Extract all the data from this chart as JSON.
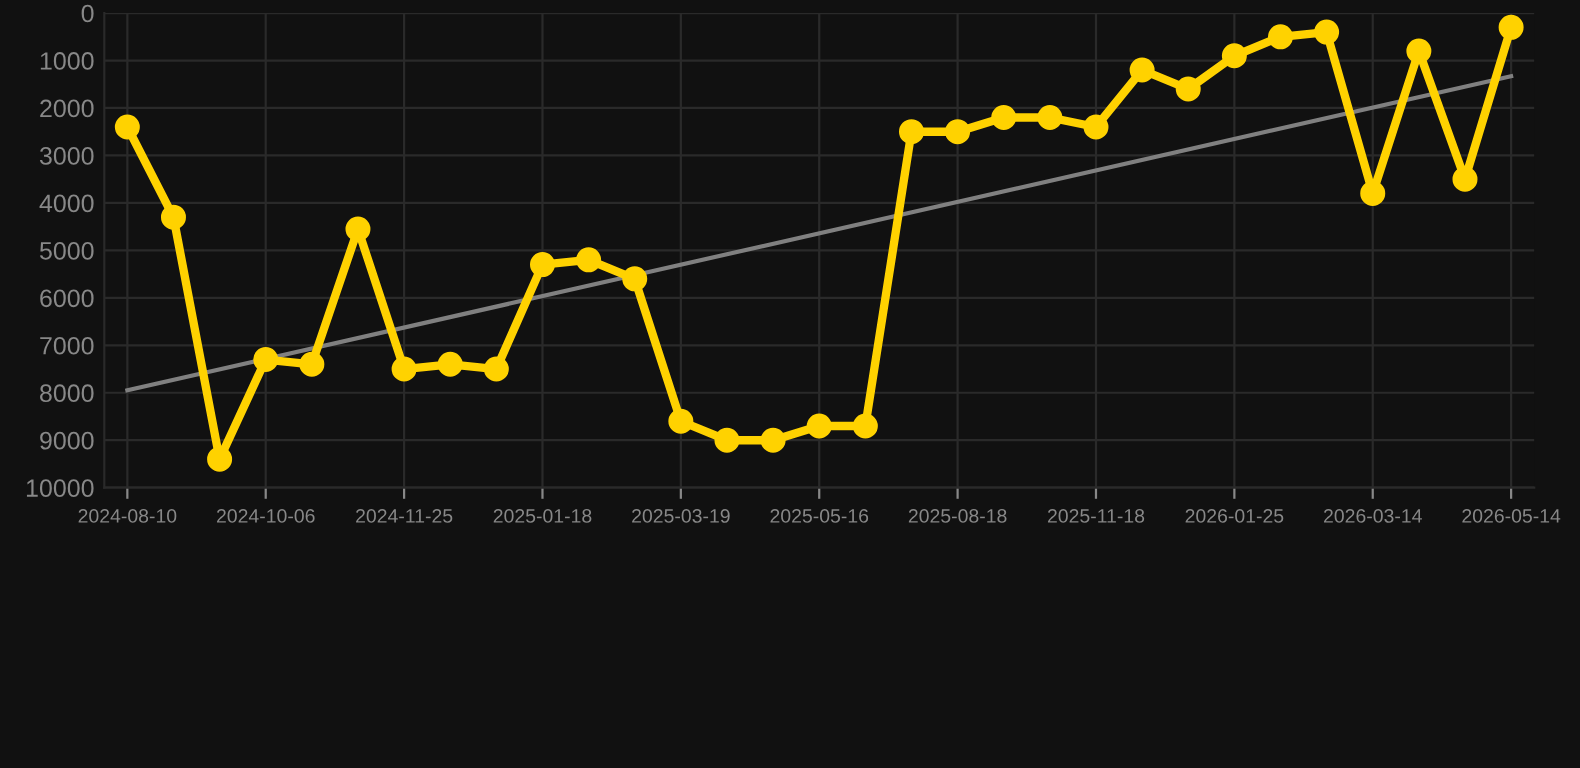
{
  "chart_data": {
    "type": "line",
    "categories": [
      "2024-08-10",
      null,
      null,
      "2024-10-06",
      null,
      null,
      "2024-11-25",
      null,
      null,
      "2025-01-18",
      null,
      null,
      "2025-03-19",
      null,
      null,
      "2025-05-16",
      null,
      null,
      "2025-08-18",
      null,
      null,
      "2025-11-18",
      null,
      null,
      "2026-01-25",
      null,
      null,
      "2026-03-14",
      null,
      null,
      "2026-05-14"
    ],
    "series": [
      {
        "color": "#ffd200",
        "marker": "circle",
        "values": [
          2400,
          4300,
          9400,
          7300,
          7400,
          4550,
          7500,
          7400,
          7500,
          5300,
          5200,
          5600,
          8600,
          9000,
          9000,
          8700,
          8700,
          2500,
          2500,
          2200,
          2200,
          2400,
          1200,
          1600,
          900,
          500,
          400,
          3800,
          800,
          3500,
          300
        ]
      },
      {
        "type": "line",
        "color": "#808080",
        "marker": "none",
        "values": [
          7950,
          null,
          null,
          null,
          null,
          null,
          null,
          null,
          null,
          null,
          null,
          null,
          null,
          null,
          null,
          null,
          null,
          null,
          null,
          null,
          null,
          null,
          null,
          null,
          null,
          null,
          null,
          null,
          null,
          null,
          1330
        ]
      }
    ],
    "ylim": [
      10000,
      0
    ],
    "yticks": [
      0,
      1000,
      2000,
      3000,
      4000,
      5000,
      6000,
      7000,
      8000,
      9000,
      10000
    ],
    "grid": true,
    "line_style": "solid"
  }
}
